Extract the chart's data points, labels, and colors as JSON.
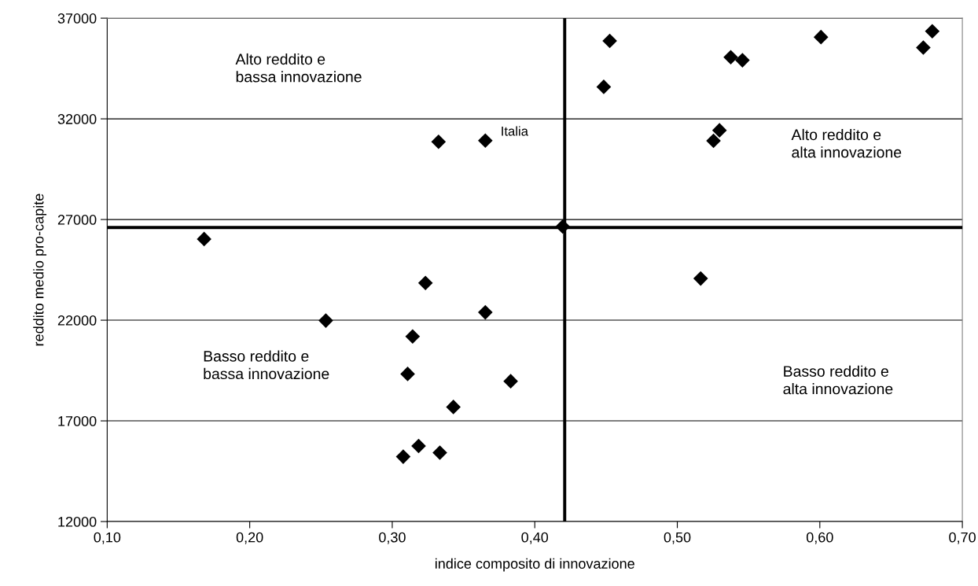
{
  "chart_data": {
    "type": "scatter",
    "xlabel": "indice composito di innovazione",
    "ylabel": "reddito medio pro-capite",
    "x": [
      0.168,
      0.3325,
      0.3653,
      0.4196,
      0.3233,
      0.2534,
      0.3653,
      0.3143,
      0.3108,
      0.3831,
      0.3429,
      0.3077,
      0.3185,
      0.3334,
      0.4526,
      0.4484,
      0.5375,
      0.5457,
      0.6008,
      0.6789,
      0.6726,
      0.5296,
      0.5254,
      0.5164
    ],
    "values": [
      26030,
      30860,
      30920,
      26650,
      23850,
      21980,
      22390,
      21190,
      19330,
      18970,
      17690,
      15220,
      15750,
      15420,
      35870,
      33590,
      35060,
      34910,
      36060,
      36350,
      35540,
      31430,
      30910,
      24070
    ],
    "color": "#000000",
    "marker": "diamond",
    "xlim": [
      0.1,
      0.7
    ],
    "xticks": [
      {
        "value": 0.1,
        "label": "0,10"
      },
      {
        "value": 0.2,
        "label": "0,20"
      },
      {
        "value": 0.3,
        "label": "0,30"
      },
      {
        "value": 0.4,
        "label": "0,40"
      },
      {
        "value": 0.5,
        "label": "0,50"
      },
      {
        "value": 0.6,
        "label": "0,60"
      },
      {
        "value": 0.7,
        "label": "0,70"
      }
    ],
    "ylim": [
      12000,
      37000
    ],
    "yticks": [
      12000,
      17000,
      22000,
      27000,
      32000,
      37000
    ],
    "grid": "y",
    "ref_lines": [
      {
        "axis": "x",
        "value": 0.421,
        "color": "#000000"
      },
      {
        "axis": "y",
        "value": 26600,
        "color": "#000000"
      }
    ],
    "annotations": [
      "Alto reddito e\nbassa innovazione",
      "Alto reddito e\nalta innovazione",
      "Basso reddito e\nbassa innovazione",
      "Basso reddito e\nalta innovazione",
      {
        "text": "Italia",
        "x": 0.3653,
        "y": 30920
      }
    ]
  }
}
